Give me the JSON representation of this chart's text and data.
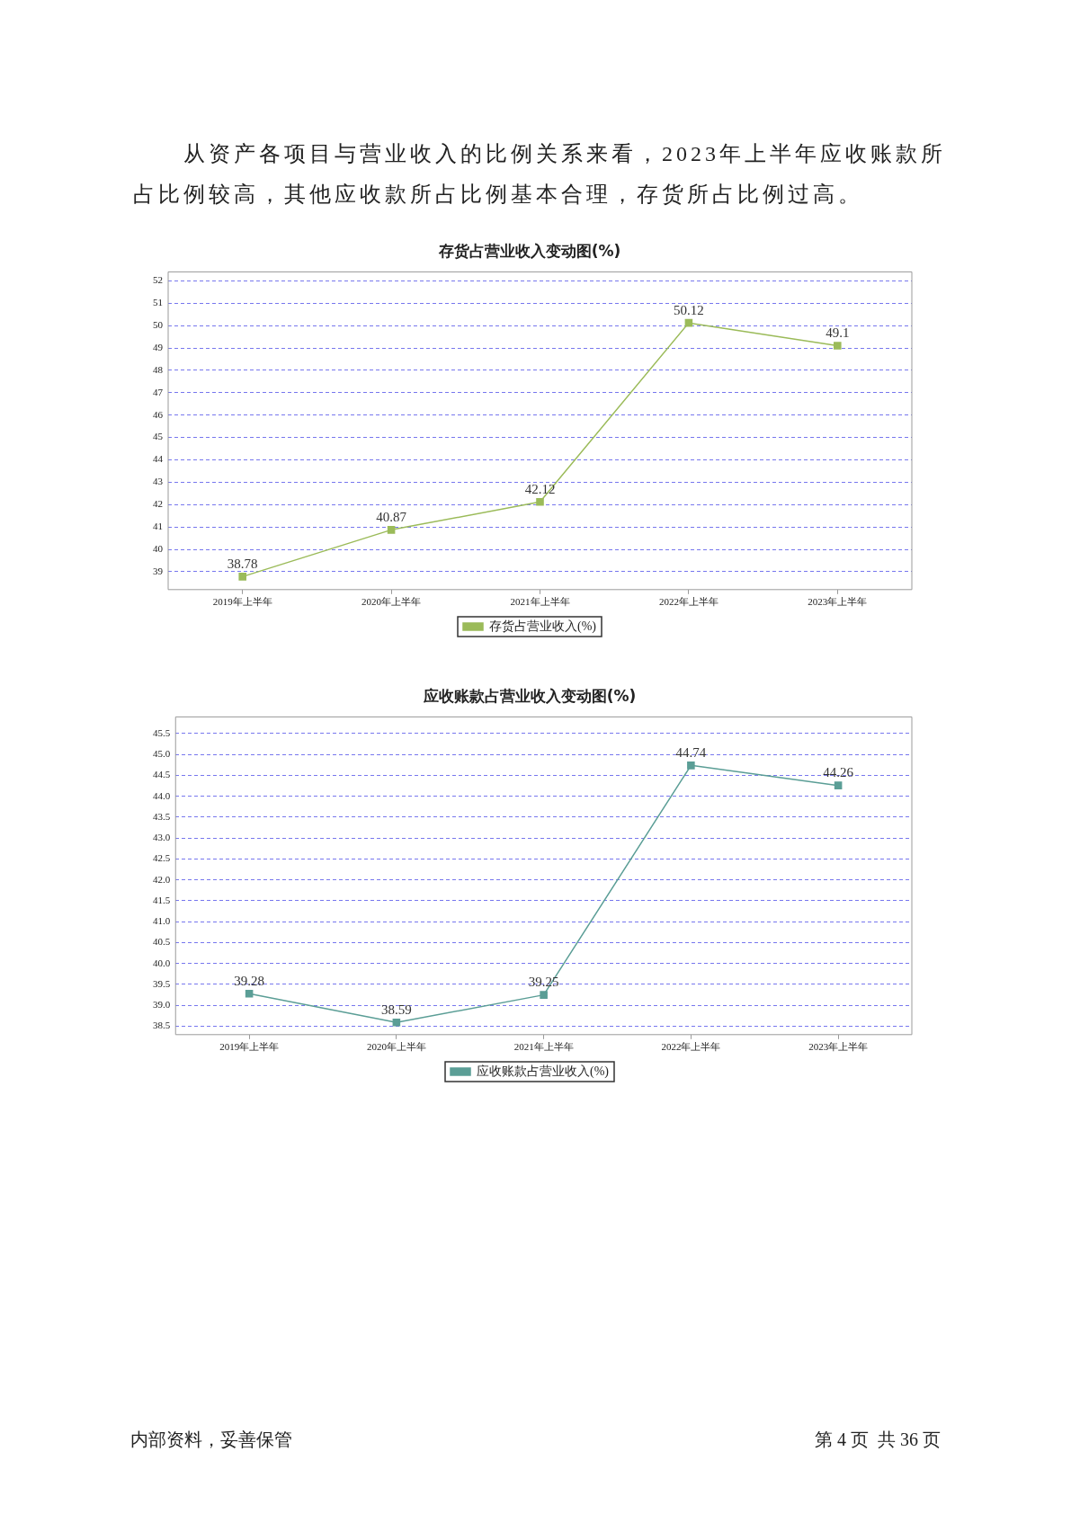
{
  "chart_data": [
    {
      "type": "line",
      "title": "存货占营业收入变动图(%)",
      "categories": [
        "2019年上半年",
        "2020年上半年",
        "2021年上半年",
        "2022年上半年",
        "2023年上半年"
      ],
      "series": [
        {
          "name": "存货占营业收入(%)",
          "color": "#9bbb59",
          "values": [
            38.78,
            40.87,
            42.12,
            50.12,
            49.1
          ]
        }
      ],
      "ylim": [
        38.2,
        52.4
      ],
      "yticks": [
        39,
        40,
        41,
        42,
        43,
        44,
        45,
        46,
        47,
        48,
        49,
        50,
        51,
        52
      ],
      "grid": "y",
      "legend": "bottom",
      "marker": "square",
      "line_style": "solid",
      "data_labels": true,
      "annotations": [
        "从资产各项目与营业收入的比例关系来看，2023年上半年应收账款所占比例较高，其他应收款所占比例基本合理，存货所占比例过高。"
      ]
    },
    {
      "type": "line",
      "title": "应收账款占营业收入变动图(%)",
      "categories": [
        "2019年上半年",
        "2020年上半年",
        "2021年上半年",
        "2022年上半年",
        "2023年上半年"
      ],
      "series": [
        {
          "name": "应收账款占营业收入(%)",
          "color": "#5b9e96",
          "values": [
            39.28,
            38.59,
            39.25,
            44.74,
            44.26
          ]
        }
      ],
      "ylim": [
        38.3,
        45.9
      ],
      "yticks": [
        38.5,
        {
          "value": 39,
          "label": "39.0"
        },
        39.5,
        {
          "value": 40,
          "label": "40.0"
        },
        40.5,
        {
          "value": 41,
          "label": "41.0"
        },
        41.5,
        {
          "value": 42,
          "label": "42.0"
        },
        42.5,
        {
          "value": 43,
          "label": "43.0"
        },
        43.5,
        {
          "value": 44,
          "label": "44.0"
        },
        44.5,
        {
          "value": 45,
          "label": "45.0"
        },
        45.5
      ],
      "grid": "y",
      "legend": "bottom",
      "marker": "square",
      "line_style": "solid",
      "data_labels": true,
      "annotations": [
        "内部资料，妥善保管",
        "第 4 页  共 36 页"
      ]
    }
  ]
}
